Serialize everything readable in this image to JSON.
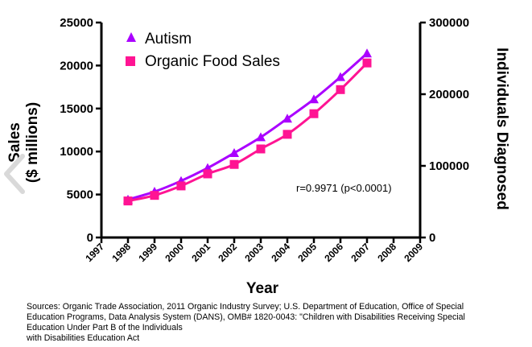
{
  "chart_data": {
    "type": "line",
    "x": [
      1998,
      1999,
      2000,
      2001,
      2002,
      2003,
      2004,
      2005,
      2006,
      2007
    ],
    "series": [
      {
        "name": "Autism",
        "axis": "right",
        "color": "#aa00ff",
        "marker": "triangle",
        "values": [
          53000,
          64000,
          79000,
          97000,
          118000,
          140000,
          166000,
          193000,
          224000,
          257000
        ]
      },
      {
        "name": "Organic Food Sales",
        "axis": "left",
        "color": "#ff1493",
        "marker": "square",
        "values": [
          4250,
          4900,
          6000,
          7400,
          8500,
          10300,
          12000,
          14400,
          17200,
          20300
        ]
      }
    ],
    "xlim": [
      1997,
      2009
    ],
    "ylim_left": [
      0,
      25000
    ],
    "ylim_right": [
      0,
      300000
    ],
    "x_ticks": [
      "1997",
      "1998",
      "1999",
      "2000",
      "2001",
      "2002",
      "2003",
      "2004",
      "2005",
      "2006",
      "2007",
      "2008",
      "2009"
    ],
    "y_ticks_left": [
      "0",
      "5000",
      "10000",
      "15000",
      "20000",
      "25000"
    ],
    "y_ticks_right": [
      "0",
      "100000",
      "200000",
      "300000"
    ],
    "xlabel": "Year",
    "ylabel_left_line1": "Sales",
    "ylabel_left_line2": "($ millions)",
    "ylabel_right": "Individuals Diagnosed",
    "annotation": "r=0.9971 (p<0.0001)",
    "legend_position": "top-left",
    "grid": false
  },
  "sources": [
    "Sources: Organic Trade Association,  2011 Organic Industry Survey; U.S. Department of Education, Office of Special",
    "Education Programs, Data Analysis System (DANS), OMB# 1820-0043: \"Children with Disabilities Receiving Special",
    "Education Under Part B of the Individuals",
    "with Disabilities Education Act"
  ],
  "nav": {
    "icon": "chevron-left-icon",
    "color": "#d9d9d9"
  }
}
